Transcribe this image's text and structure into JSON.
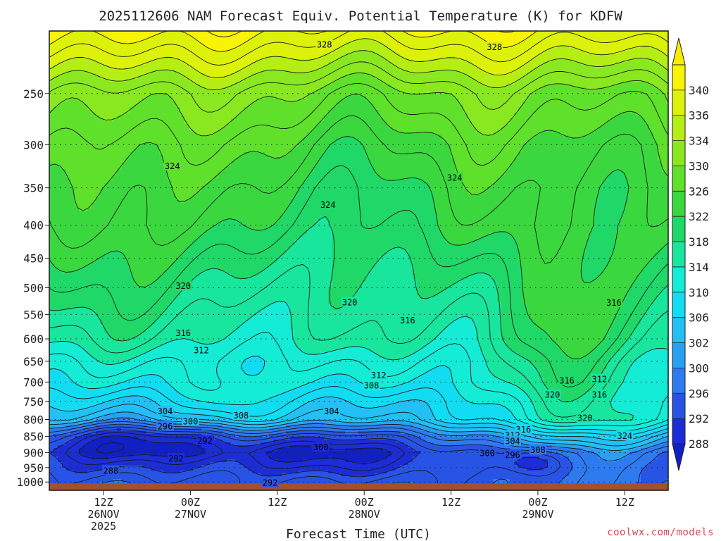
{
  "chart_data": {
    "type": "heatmap",
    "title": "2025112606 NAM Forecast Equiv. Potential Temperature (K) for KDFW",
    "xlabel": "Forecast Time (UTC)",
    "ylabel": "",
    "credit": "coolwx.com/models",
    "x_range_hours": [
      -1.5,
      84
    ],
    "x_ticks": [
      {
        "hours": 6,
        "lines": [
          "12Z",
          "26NOV",
          "2025"
        ]
      },
      {
        "hours": 18,
        "lines": [
          "00Z",
          "27NOV"
        ]
      },
      {
        "hours": 30,
        "lines": [
          "12Z"
        ]
      },
      {
        "hours": 42,
        "lines": [
          "00Z",
          "28NOV"
        ]
      },
      {
        "hours": 54,
        "lines": [
          "12Z"
        ]
      },
      {
        "hours": 66,
        "lines": [
          "00Z",
          "29NOV"
        ]
      },
      {
        "hours": 78,
        "lines": [
          "12Z"
        ]
      }
    ],
    "y_range_hpa": [
      200,
      1030
    ],
    "y_ticks": [
      250,
      300,
      350,
      400,
      450,
      500,
      550,
      600,
      650,
      700,
      750,
      800,
      850,
      900,
      950,
      1000
    ],
    "ground_level_hpa": 1000,
    "colorbar": {
      "levels": [
        288,
        292,
        296,
        300,
        302,
        306,
        310,
        314,
        318,
        322,
        326,
        330,
        334,
        336,
        340
      ],
      "colors": [
        "#1c2dd6",
        "#2854e6",
        "#2e7af0",
        "#2aa0f2",
        "#22c0f4",
        "#12dcf2",
        "#14ecd6",
        "#18e69c",
        "#1fd868",
        "#3ad83e",
        "#5fe02a",
        "#8ae820",
        "#b4ee14",
        "#dcf20a",
        "#f8f404"
      ],
      "below_color": "#1020c4",
      "above_color": "#f8ec04"
    },
    "profile_theta_e": [
      {
        "p": 200,
        "thetaE": 340
      },
      {
        "p": 250,
        "thetaE": 330
      },
      {
        "p": 300,
        "thetaE": 326
      },
      {
        "p": 350,
        "thetaE": 324
      },
      {
        "p": 400,
        "thetaE": 323
      },
      {
        "p": 450,
        "thetaE": 321
      },
      {
        "p": 500,
        "thetaE": 319
      },
      {
        "p": 550,
        "thetaE": 317
      },
      {
        "p": 600,
        "thetaE": 315
      },
      {
        "p": 650,
        "thetaE": 312
      },
      {
        "p": 700,
        "thetaE": 310
      },
      {
        "p": 750,
        "thetaE": 307
      },
      {
        "p": 800,
        "thetaE": 305
      },
      {
        "p": 850,
        "thetaE": 297
      },
      {
        "p": 900,
        "thetaE": 292
      },
      {
        "p": 950,
        "thetaE": 293
      },
      {
        "p": 1000,
        "thetaE": 295
      }
    ],
    "contour_labels": [
      {
        "t": 36.5,
        "p": 210,
        "text": "328"
      },
      {
        "t": 60,
        "p": 212,
        "text": "328"
      },
      {
        "t": 15.5,
        "p": 324,
        "text": "324"
      },
      {
        "t": 54.5,
        "p": 338,
        "text": "324"
      },
      {
        "t": 37,
        "p": 372,
        "text": "324"
      },
      {
        "t": 17,
        "p": 497,
        "text": "320"
      },
      {
        "t": 40,
        "p": 527,
        "text": "320"
      },
      {
        "t": 76.5,
        "p": 528,
        "text": "316"
      },
      {
        "t": 17,
        "p": 588,
        "text": "316"
      },
      {
        "t": 48,
        "p": 562,
        "text": "316"
      },
      {
        "t": 19.5,
        "p": 625,
        "text": "312"
      },
      {
        "t": 44,
        "p": 684,
        "text": "312"
      },
      {
        "t": 43,
        "p": 709,
        "text": "308"
      },
      {
        "t": 70,
        "p": 697,
        "text": "316"
      },
      {
        "t": 74.5,
        "p": 693,
        "text": "312"
      },
      {
        "t": 68,
        "p": 733,
        "text": "320"
      },
      {
        "t": 74.5,
        "p": 733,
        "text": "316"
      },
      {
        "t": 14.5,
        "p": 777,
        "text": "304"
      },
      {
        "t": 37.5,
        "p": 777,
        "text": "304"
      },
      {
        "t": 25,
        "p": 789,
        "text": "308"
      },
      {
        "t": 18,
        "p": 806,
        "text": "300"
      },
      {
        "t": 14.5,
        "p": 820,
        "text": "296"
      },
      {
        "t": 72.5,
        "p": 796,
        "text": "320"
      },
      {
        "t": 64,
        "p": 830,
        "text": "316"
      },
      {
        "t": 62.5,
        "p": 848,
        "text": "312"
      },
      {
        "t": 62.5,
        "p": 865,
        "text": "304"
      },
      {
        "t": 20,
        "p": 864,
        "text": "292"
      },
      {
        "t": 36,
        "p": 884,
        "text": "300"
      },
      {
        "t": 59,
        "p": 903,
        "text": "300"
      },
      {
        "t": 62.5,
        "p": 908,
        "text": "296"
      },
      {
        "t": 66,
        "p": 893,
        "text": "308"
      },
      {
        "t": 78,
        "p": 849,
        "text": "324"
      },
      {
        "t": 16,
        "p": 920,
        "text": "292"
      },
      {
        "t": 7,
        "p": 961,
        "text": "288"
      },
      {
        "t": 29,
        "p": 1003,
        "text": "292"
      }
    ]
  }
}
